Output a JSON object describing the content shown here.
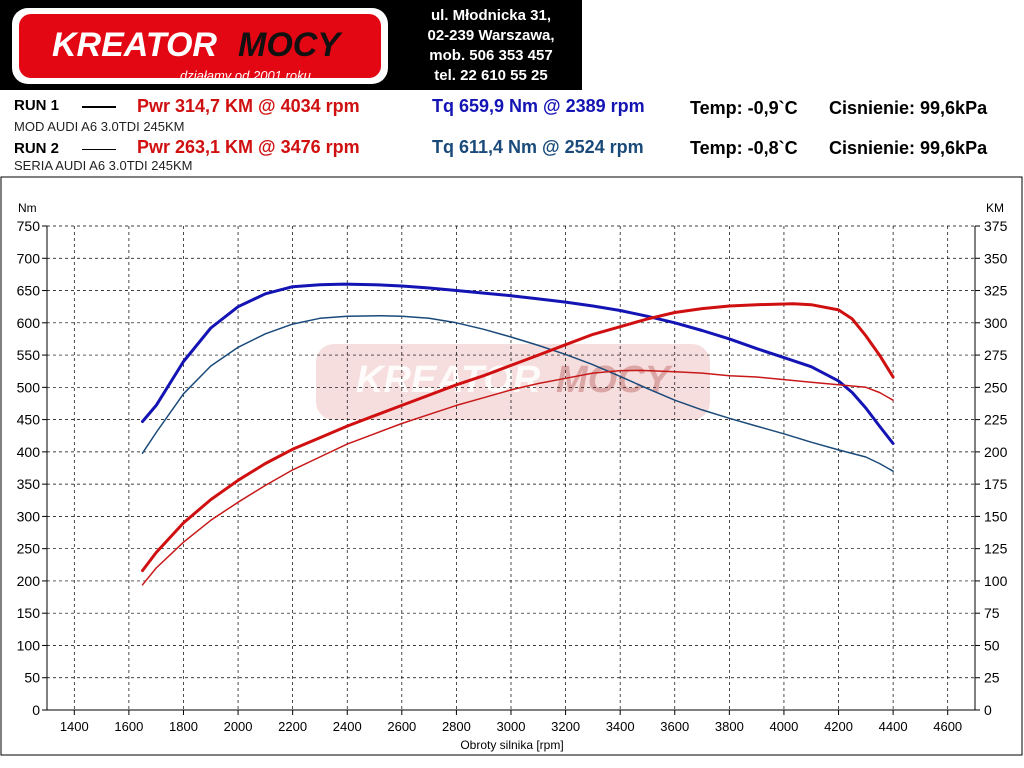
{
  "logo": {
    "brand_part1": "KREATOR",
    "brand_part2": "MOCY",
    "tagline": "działamy od 2001 roku"
  },
  "address": {
    "line1": "ul. Młodnicka 31,",
    "line2": "02-239  Warszawa,",
    "line3": "mob.  506 353 457",
    "line4": "tel.  22 610 55 25"
  },
  "runs": [
    {
      "label": "RUN 1",
      "power": "Pwr  314,7 KM @ 4034 rpm",
      "torque": "Tq 659,9 Nm @ 2389 rpm",
      "temp": "Temp: -0,9`C",
      "pressure": "Cisnienie: 99,6kPa",
      "description": "MOD AUDI A6 3.0TDI 245KM"
    },
    {
      "label": "RUN 2",
      "power": "Pwr  263,1 KM @ 3476 rpm",
      "torque": "Tq 611,4 Nm @ 2524 rpm",
      "temp": "Temp: -0,8`C",
      "pressure": "Cisnienie: 99,6kPa",
      "description": "SERIA AUDI A6 3.0TDI 245KM"
    }
  ],
  "colors": {
    "torque_run1": "#1414b4",
    "torque_run2": "#1a4a7a",
    "power_run1": "#d01010",
    "power_run2": "#c81818",
    "watermark": "#e0a0a0"
  },
  "chart_data": {
    "type": "line",
    "xlabel": "Obroty silnika [rpm]",
    "ylabel_left": "Nm",
    "ylabel_right": "KM",
    "xlim": [
      1300,
      4700
    ],
    "ylim_left": [
      0,
      750
    ],
    "ylim_right": [
      0,
      375
    ],
    "x_ticks": [
      1400,
      1600,
      1800,
      2000,
      2200,
      2400,
      2600,
      2800,
      3000,
      3200,
      3400,
      3600,
      3800,
      4000,
      4200,
      4400,
      4600
    ],
    "y_ticks_left": [
      0,
      50,
      100,
      150,
      200,
      250,
      300,
      350,
      400,
      450,
      500,
      550,
      600,
      650,
      700,
      750
    ],
    "y_ticks_right": [
      0,
      25,
      50,
      75,
      100,
      125,
      150,
      175,
      200,
      225,
      250,
      275,
      300,
      325,
      350,
      375
    ],
    "grid": true,
    "series": [
      {
        "axis": "left",
        "color": "#1414b4",
        "width": 3,
        "x": [
          1650,
          1700,
          1800,
          1900,
          2000,
          2100,
          2200,
          2300,
          2389,
          2500,
          2600,
          2700,
          2800,
          2900,
          3000,
          3100,
          3200,
          3300,
          3400,
          3500,
          3600,
          3700,
          3800,
          3900,
          4000,
          4100,
          4200,
          4250,
          4300,
          4350,
          4400
        ],
        "y": [
          447,
          472,
          540,
          592,
          625,
          645,
          656,
          659,
          660,
          659,
          657,
          654,
          650,
          646,
          642,
          637,
          632,
          626,
          619,
          610,
          600,
          588,
          575,
          560,
          546,
          532,
          510,
          492,
          468,
          440,
          413
        ]
      },
      {
        "axis": "left",
        "color": "#1a4a7a",
        "width": 1.5,
        "x": [
          1650,
          1700,
          1800,
          1900,
          2000,
          2100,
          2200,
          2300,
          2400,
          2524,
          2600,
          2700,
          2800,
          2900,
          3000,
          3100,
          3200,
          3300,
          3400,
          3500,
          3600,
          3700,
          3800,
          3900,
          4000,
          4100,
          4200,
          4300,
          4350,
          4400
        ],
        "y": [
          398,
          430,
          490,
          533,
          562,
          583,
          598,
          607,
          610,
          611,
          610,
          607,
          600,
          590,
          578,
          565,
          551,
          535,
          517,
          498,
          480,
          465,
          452,
          440,
          428,
          415,
          403,
          392,
          382,
          370
        ]
      },
      {
        "axis": "right",
        "color": "#d01010",
        "width": 3,
        "x": [
          1650,
          1700,
          1800,
          1900,
          2000,
          2100,
          2200,
          2300,
          2400,
          2500,
          2600,
          2700,
          2800,
          2900,
          3000,
          3100,
          3200,
          3300,
          3400,
          3500,
          3600,
          3700,
          3800,
          3900,
          4034,
          4100,
          4200,
          4250,
          4300,
          4350,
          4400
        ],
        "y": [
          108,
          122,
          145,
          163,
          178,
          191,
          202,
          211,
          220,
          228,
          236,
          244,
          252,
          259,
          267,
          275,
          283,
          291,
          297,
          303,
          308,
          311,
          313,
          314,
          314.7,
          314,
          310,
          303,
          290,
          275,
          258
        ]
      },
      {
        "axis": "right",
        "color": "#c81818",
        "width": 1.5,
        "x": [
          1650,
          1700,
          1800,
          1900,
          2000,
          2100,
          2200,
          2300,
          2400,
          2500,
          2600,
          2700,
          2800,
          2900,
          3000,
          3100,
          3200,
          3300,
          3400,
          3476,
          3600,
          3700,
          3800,
          3900,
          4000,
          4100,
          4200,
          4300,
          4350,
          4400
        ],
        "y": [
          97,
          110,
          130,
          147,
          161,
          174,
          186,
          196,
          206,
          214,
          222,
          229,
          236,
          242,
          248,
          253,
          257,
          261,
          263,
          263.1,
          262,
          261,
          259,
          258,
          256,
          254,
          252,
          250,
          246,
          240
        ]
      }
    ]
  }
}
